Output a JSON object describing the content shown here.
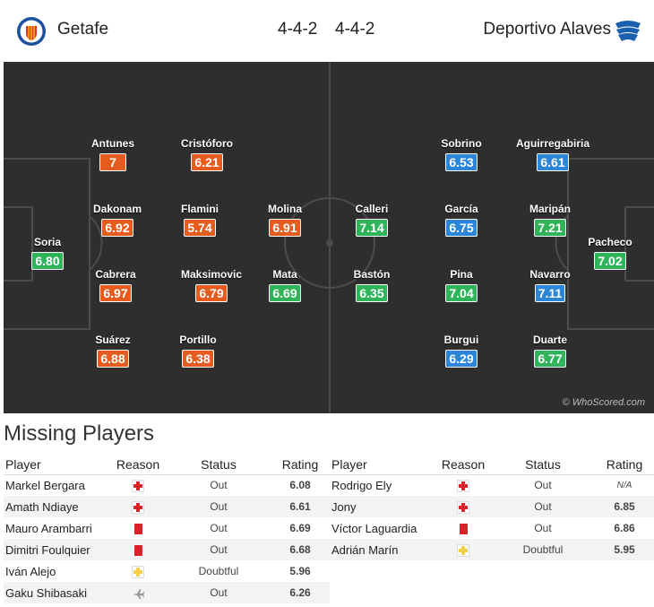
{
  "header": {
    "home_team": "Getafe",
    "away_team": "Deportivo Alaves",
    "home_formation": "4-4-2",
    "away_formation": "4-4-2",
    "home_crest": "getafe-crest-icon",
    "away_crest": "alaves-crest-icon"
  },
  "colors": {
    "rating_low": "#e65c1e",
    "rating_mid": "#2fb45a",
    "rating_high": "#2b86d8",
    "pitch": "#2e2e2e",
    "rating_text": "#c46b1c"
  },
  "pitch": {
    "watermark": "© WhoScored.com",
    "home_players": [
      {
        "name": "Soria",
        "rating": "6.80"
      },
      {
        "name": "Antunes",
        "rating": "7"
      },
      {
        "name": "Dakonam",
        "rating": "6.92"
      },
      {
        "name": "Cabrera",
        "rating": "6.97"
      },
      {
        "name": "Suárez",
        "rating": "6.88"
      },
      {
        "name": "Cristóforo",
        "rating": "6.21"
      },
      {
        "name": "Flamini",
        "rating": "5.74"
      },
      {
        "name": "Maksimovic",
        "rating": "6.79"
      },
      {
        "name": "Portillo",
        "rating": "6.38"
      },
      {
        "name": "Molina",
        "rating": "6.91"
      },
      {
        "name": "Mata",
        "rating": "6.69"
      }
    ],
    "away_players": [
      {
        "name": "Calleri",
        "rating": "7.14"
      },
      {
        "name": "Bastón",
        "rating": "6.35"
      },
      {
        "name": "Sobrino",
        "rating": "6.53"
      },
      {
        "name": "García",
        "rating": "6.75"
      },
      {
        "name": "Pina",
        "rating": "7.04"
      },
      {
        "name": "Burgui",
        "rating": "6.29"
      },
      {
        "name": "Aguirregabiria",
        "rating": "6.61"
      },
      {
        "name": "Maripán",
        "rating": "7.21"
      },
      {
        "name": "Navarro",
        "rating": "7.11"
      },
      {
        "name": "Duarte",
        "rating": "6.77"
      },
      {
        "name": "Pacheco",
        "rating": "7.02"
      }
    ]
  },
  "missing": {
    "title": "Missing Players",
    "columns": {
      "player": "Player",
      "reason": "Reason",
      "status": "Status",
      "rating": "Rating"
    },
    "home": [
      {
        "player": "Markel Bergara",
        "reason": "injury-cross-icon",
        "status": "Out",
        "rating": "6.08"
      },
      {
        "player": "Amath Ndiaye",
        "reason": "injury-cross-icon",
        "status": "Out",
        "rating": "6.61"
      },
      {
        "player": "Mauro Arambarri",
        "reason": "red-card-icon",
        "status": "Out",
        "rating": "6.69"
      },
      {
        "player": "Dimitri Foulquier",
        "reason": "red-card-icon",
        "status": "Out",
        "rating": "6.68"
      },
      {
        "player": "Iván Alejo",
        "reason": "doubtful-cross-icon",
        "status": "Doubtful",
        "rating": "5.96"
      },
      {
        "player": "Gaku Shibasaki",
        "reason": "airplane-icon",
        "status": "Out",
        "rating": "6.26"
      }
    ],
    "away": [
      {
        "player": "Rodrigo Ely",
        "reason": "injury-cross-icon",
        "status": "Out",
        "rating": "N/A"
      },
      {
        "player": "Jony",
        "reason": "injury-cross-icon",
        "status": "Out",
        "rating": "6.85"
      },
      {
        "player": "Víctor Laguardia",
        "reason": "red-card-icon",
        "status": "Out",
        "rating": "6.86"
      },
      {
        "player": "Adrián Marín",
        "reason": "doubtful-cross-icon",
        "status": "Doubtful",
        "rating": "5.95"
      }
    ]
  }
}
